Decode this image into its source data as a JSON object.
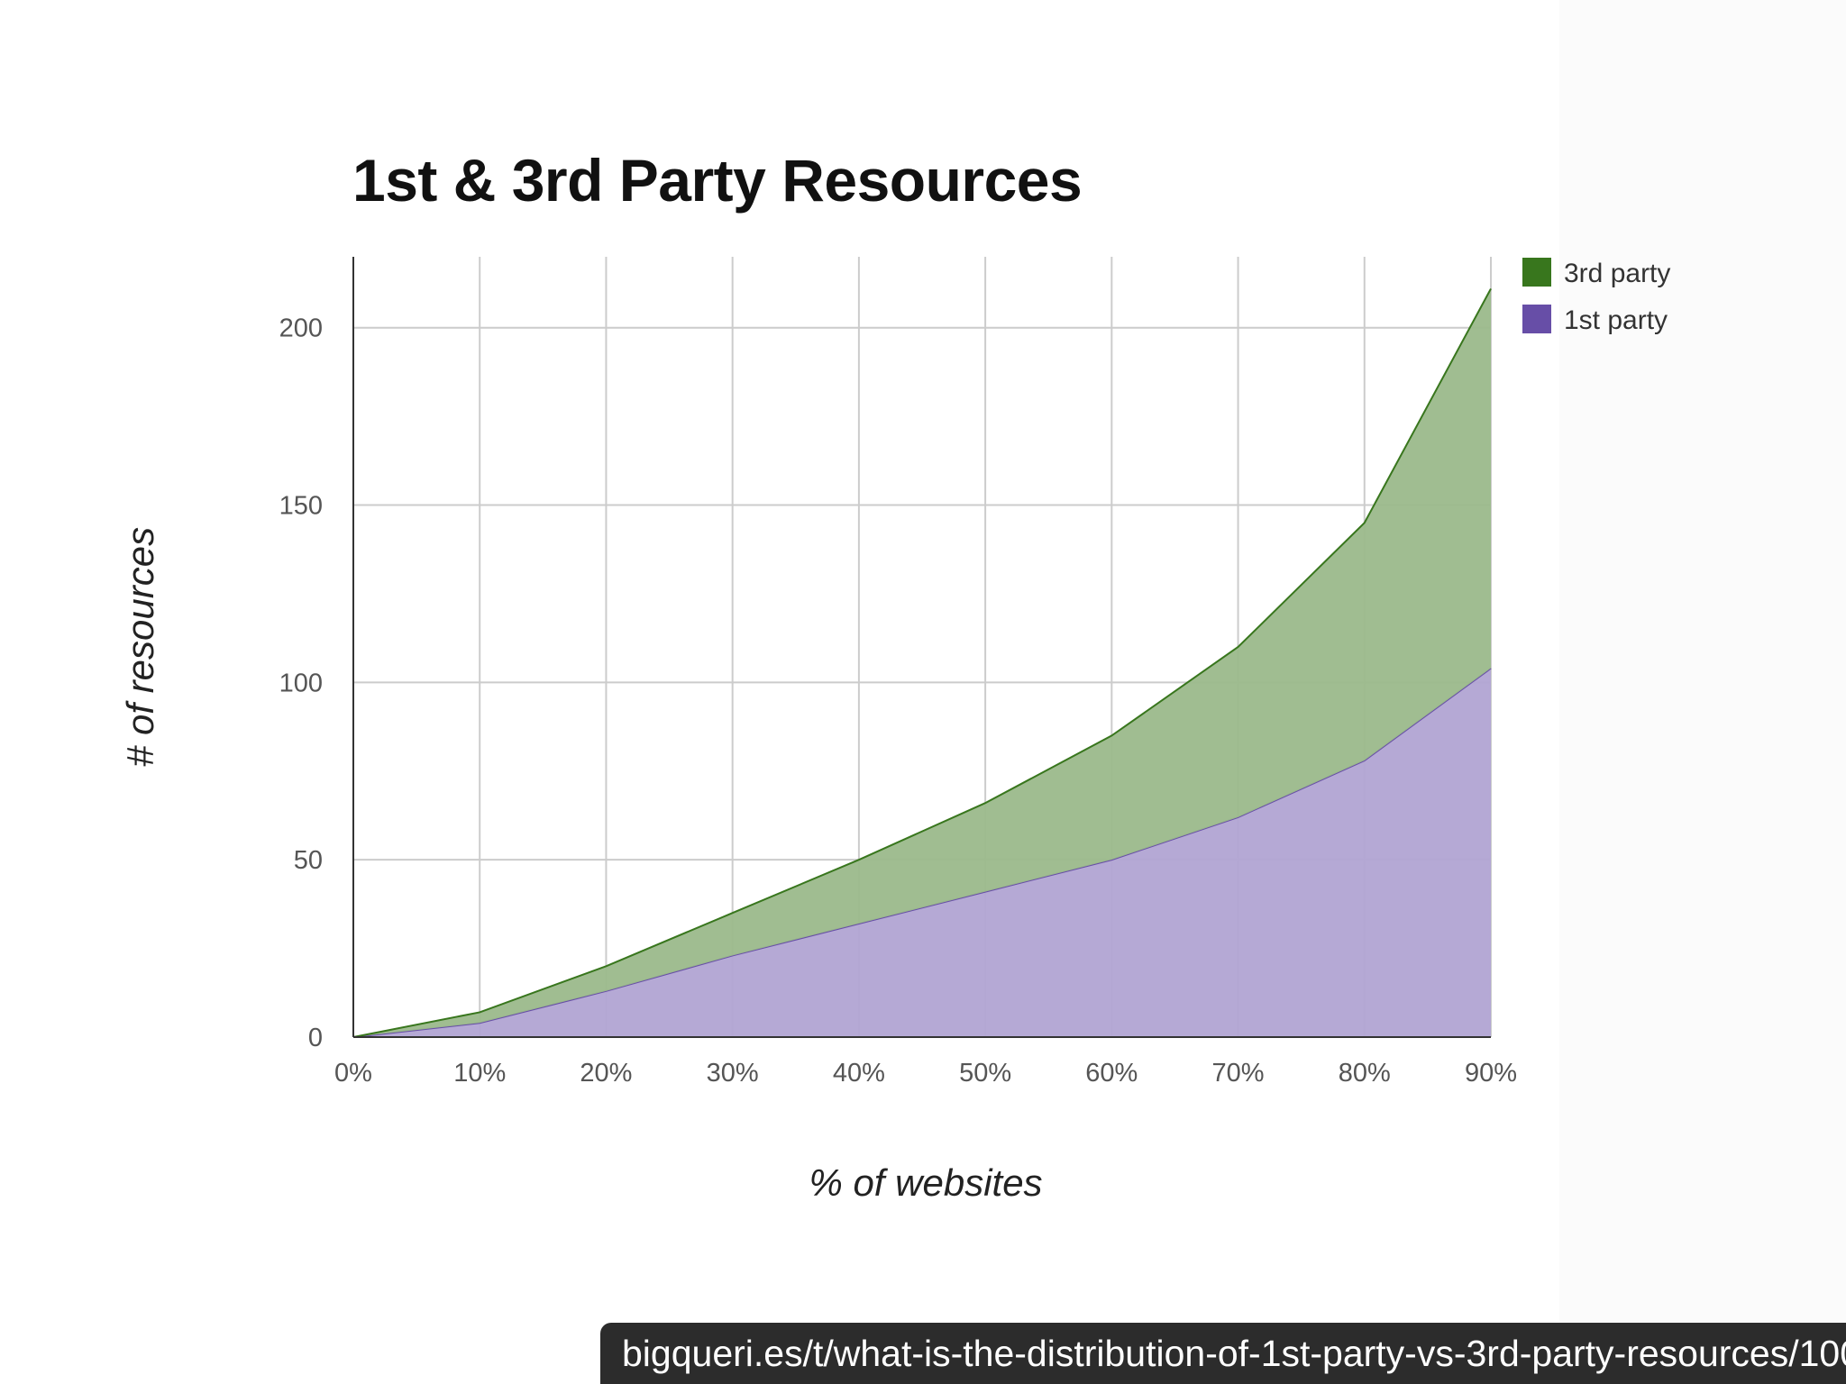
{
  "chart_data": {
    "type": "area",
    "stacked": true,
    "title": "1st & 3rd Party Resources",
    "xlabel": "% of websites",
    "ylabel": "# of resources",
    "x": [
      "0%",
      "10%",
      "20%",
      "30%",
      "40%",
      "50%",
      "60%",
      "70%",
      "80%",
      "90%"
    ],
    "ylim": [
      0,
      220
    ],
    "yticks": [
      0,
      50,
      100,
      150,
      200
    ],
    "grid": true,
    "legend": "right",
    "series": [
      {
        "name": "1st party",
        "color": "#674ea7",
        "values": [
          0,
          4,
          13,
          23,
          32,
          41,
          50,
          62,
          78,
          104
        ]
      },
      {
        "name": "3rd party",
        "color": "#38761d",
        "values": [
          0,
          3,
          7,
          12,
          18,
          25,
          35,
          48,
          67,
          107
        ]
      }
    ]
  },
  "source_url": "bigqueri.es/t/what-is-the-distribution-of-1st-party-vs-3rd-party-resources/100"
}
